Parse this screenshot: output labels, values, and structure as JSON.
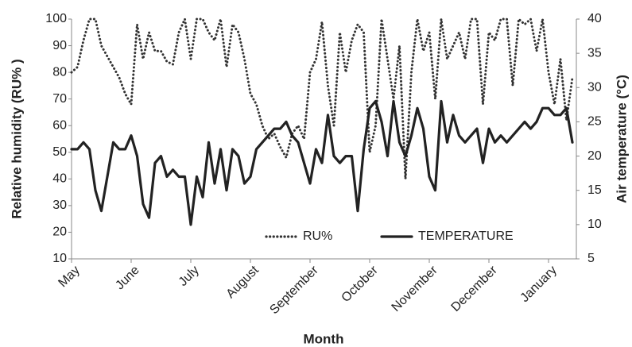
{
  "chart_data": {
    "type": "line",
    "categories": [
      "May",
      null,
      null,
      null,
      null,
      null,
      null,
      null,
      null,
      null,
      "June",
      null,
      null,
      null,
      null,
      null,
      null,
      null,
      null,
      null,
      "July",
      null,
      null,
      null,
      null,
      null,
      null,
      null,
      null,
      null,
      "August",
      null,
      null,
      null,
      null,
      null,
      null,
      null,
      null,
      null,
      "September",
      null,
      null,
      null,
      null,
      null,
      null,
      null,
      null,
      null,
      "October",
      null,
      null,
      null,
      null,
      null,
      null,
      null,
      null,
      null,
      "November",
      null,
      null,
      null,
      null,
      null,
      null,
      null,
      null,
      null,
      "December",
      null,
      null,
      null,
      null,
      null,
      null,
      null,
      null,
      null,
      "January",
      null,
      null,
      null,
      null
    ],
    "series": [
      {
        "name": "RU%",
        "color": "#333333",
        "style": "dotted",
        "values": [
          80,
          82,
          92,
          100,
          100,
          90,
          86,
          82,
          78,
          72,
          68,
          98,
          85,
          95,
          88,
          88,
          84,
          83,
          95,
          100,
          85,
          100,
          100,
          95,
          92,
          100,
          82,
          98,
          95,
          85,
          72,
          68,
          60,
          55,
          57,
          52,
          48,
          57,
          60,
          55,
          80,
          85,
          99,
          75,
          60,
          95,
          80,
          92,
          98,
          95,
          50,
          60,
          100,
          85,
          70,
          90,
          40,
          80,
          100,
          88,
          95,
          70,
          100,
          85,
          90,
          95,
          85,
          100,
          100,
          68,
          95,
          92,
          100,
          100,
          75,
          100,
          98,
          100,
          88,
          100,
          80,
          68,
          85,
          62,
          78
        ]
      },
      {
        "name": "TEMPERATURE",
        "color": "#222222",
        "style": "solid",
        "axis": "y2",
        "values": [
          21,
          21,
          22,
          21,
          15,
          12,
          17,
          22,
          21,
          21,
          23,
          20,
          13,
          11,
          19,
          20,
          17,
          18,
          17,
          17,
          10,
          17,
          14,
          22,
          16,
          21,
          15,
          21,
          20,
          16,
          17,
          21,
          22,
          23,
          24,
          24,
          25,
          23,
          22,
          19,
          16,
          21,
          19,
          26,
          20,
          19,
          20,
          20,
          12,
          21,
          27,
          28,
          25,
          20,
          28,
          22,
          20,
          23,
          27,
          24,
          17,
          15,
          28,
          22,
          26,
          23,
          22,
          23,
          24,
          19,
          24,
          22,
          23,
          22,
          23,
          24,
          25,
          24,
          25,
          27,
          27,
          26,
          26,
          27,
          22
        ]
      }
    ],
    "xlabel": "Month",
    "ylabel": "Relative humidity (RU% )",
    "y2label": "Air temperature (°C)",
    "ylim": [
      10,
      100
    ],
    "yticks": [
      10,
      20,
      30,
      40,
      50,
      60,
      70,
      80,
      90,
      100
    ],
    "y2lim": [
      5,
      40
    ],
    "y2ticks": [
      5,
      10,
      15,
      20,
      25,
      30,
      35,
      40
    ],
    "legend": "bottom"
  }
}
